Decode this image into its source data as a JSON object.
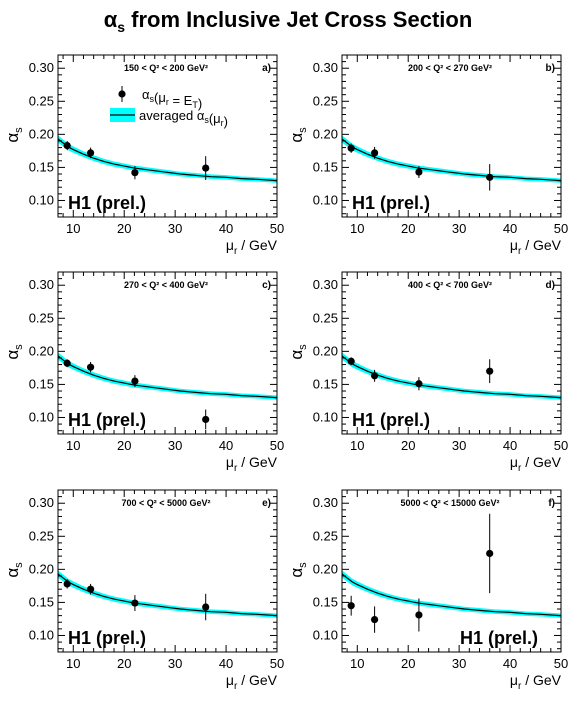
{
  "title": {
    "symbol": "α",
    "subscript": "s",
    "text": " from Inclusive Jet Cross Section"
  },
  "legend": {
    "points_label": "α_s(μ_r = E_T)",
    "band_label": "averaged α_s(μ_r)"
  },
  "colors": {
    "band": "#00ffff",
    "curve": "#000000",
    "points": "#000000"
  },
  "chart_data": [
    {
      "type": "scatter",
      "panel": "a)",
      "q2_label": "150 < Q² < 200 GeV²",
      "experiment_label": "H1 (prel.)",
      "xlabel": "μ_r / GeV",
      "ylabel": "α_s",
      "xlim": [
        7,
        50
      ],
      "ylim": [
        0.075,
        0.32
      ],
      "xticks": [
        10,
        20,
        30,
        40,
        50
      ],
      "yticks": [
        0.1,
        0.15,
        0.2,
        0.25,
        0.3
      ],
      "series": [
        {
          "name": "α_s(μ_r = E_T)",
          "x": [
            8.8,
            13.4,
            22.1,
            36.0
          ],
          "y": [
            0.183,
            0.172,
            0.142,
            0.149
          ],
          "yerr": [
            0.007,
            0.008,
            0.01,
            0.018
          ]
        }
      ]
    },
    {
      "type": "scatter",
      "panel": "b)",
      "q2_label": "200 < Q² < 270 GeV²",
      "experiment_label": "H1 (prel.)",
      "xlabel": "μ_r / GeV",
      "ylabel": "α_s",
      "xlim": [
        7,
        50
      ],
      "ylim": [
        0.075,
        0.32
      ],
      "xticks": [
        10,
        20,
        30,
        40,
        50
      ],
      "yticks": [
        0.1,
        0.15,
        0.2,
        0.25,
        0.3
      ],
      "series": [
        {
          "name": "α_s(μ_r = E_T)",
          "x": [
            8.8,
            13.4,
            22.1,
            36.0
          ],
          "y": [
            0.179,
            0.172,
            0.143,
            0.135
          ],
          "yerr": [
            0.007,
            0.009,
            0.009,
            0.02
          ]
        }
      ]
    },
    {
      "type": "scatter",
      "panel": "c)",
      "q2_label": "270 < Q² < 400 GeV²",
      "experiment_label": "H1 (prel.)",
      "xlabel": "μ_r / GeV",
      "ylabel": "α_s",
      "xlim": [
        7,
        50
      ],
      "ylim": [
        0.075,
        0.32
      ],
      "xticks": [
        10,
        20,
        30,
        40,
        50
      ],
      "yticks": [
        0.1,
        0.15,
        0.2,
        0.25,
        0.3
      ],
      "series": [
        {
          "name": "α_s(μ_r = E_T)",
          "x": [
            8.8,
            13.4,
            22.1,
            36.0
          ],
          "y": [
            0.182,
            0.176,
            0.155,
            0.097
          ],
          "yerr": [
            0.006,
            0.008,
            0.009,
            0.015
          ]
        }
      ]
    },
    {
      "type": "scatter",
      "panel": "d)",
      "q2_label": "400 < Q² < 700 GeV²",
      "experiment_label": "H1 (prel.)",
      "xlabel": "μ_r / GeV",
      "ylabel": "α_s",
      "xlim": [
        7,
        50
      ],
      "ylim": [
        0.075,
        0.32
      ],
      "xticks": [
        10,
        20,
        30,
        40,
        50
      ],
      "yticks": [
        0.1,
        0.15,
        0.2,
        0.25,
        0.3
      ],
      "series": [
        {
          "name": "α_s(μ_r = E_T)",
          "x": [
            8.8,
            13.4,
            22.1,
            36.0
          ],
          "y": [
            0.185,
            0.163,
            0.151,
            0.17
          ],
          "yerr": [
            0.006,
            0.009,
            0.01,
            0.018
          ]
        }
      ]
    },
    {
      "type": "scatter",
      "panel": "e)",
      "q2_label": "700 < Q² < 5000 GeV²",
      "experiment_label": "H1 (prel.)",
      "xlabel": "μ_r / GeV",
      "ylabel": "α_s",
      "xlim": [
        7,
        50
      ],
      "ylim": [
        0.075,
        0.32
      ],
      "xticks": [
        10,
        20,
        30,
        40,
        50
      ],
      "yticks": [
        0.1,
        0.15,
        0.2,
        0.25,
        0.3
      ],
      "series": [
        {
          "name": "α_s(μ_r = E_T)",
          "x": [
            8.8,
            13.4,
            22.1,
            36.0
          ],
          "y": [
            0.178,
            0.17,
            0.149,
            0.143
          ],
          "yerr": [
            0.007,
            0.008,
            0.012,
            0.02
          ]
        }
      ]
    },
    {
      "type": "scatter",
      "panel": "f)",
      "q2_label": "5000 < Q² < 15000 GeV²",
      "experiment_label": "H1 (prel.)",
      "xlabel": "μ_r / GeV",
      "ylabel": "α_s",
      "xlim": [
        7,
        50
      ],
      "ylim": [
        0.075,
        0.32
      ],
      "xticks": [
        10,
        20,
        30,
        40,
        50
      ],
      "yticks": [
        0.1,
        0.15,
        0.2,
        0.25,
        0.3
      ],
      "series": [
        {
          "name": "α_s(μ_r = E_T)",
          "x": [
            8.8,
            13.4,
            22.1,
            36.0
          ],
          "y": [
            0.145,
            0.124,
            0.131,
            0.224
          ],
          "yerr": [
            0.015,
            0.02,
            0.025,
            0.06
          ]
        }
      ]
    }
  ],
  "band": {
    "name": "averaged α_s(μ_r)",
    "x": [
      7,
      8,
      9,
      10,
      12,
      14,
      16,
      18,
      20,
      22,
      25,
      28,
      31,
      34,
      37,
      40,
      43,
      46,
      50
    ],
    "y": [
      0.193,
      0.187,
      0.181,
      0.177,
      0.17,
      0.164,
      0.159,
      0.155,
      0.152,
      0.149,
      0.146,
      0.143,
      0.14,
      0.138,
      0.136,
      0.135,
      0.133,
      0.132,
      0.13
    ],
    "half_width": [
      0.0055,
      0.0052,
      0.005,
      0.0048,
      0.0045,
      0.0043,
      0.0041,
      0.004,
      0.0039,
      0.0038,
      0.0037,
      0.0036,
      0.0035,
      0.0035,
      0.0034,
      0.0034,
      0.0033,
      0.0033,
      0.0033
    ]
  }
}
